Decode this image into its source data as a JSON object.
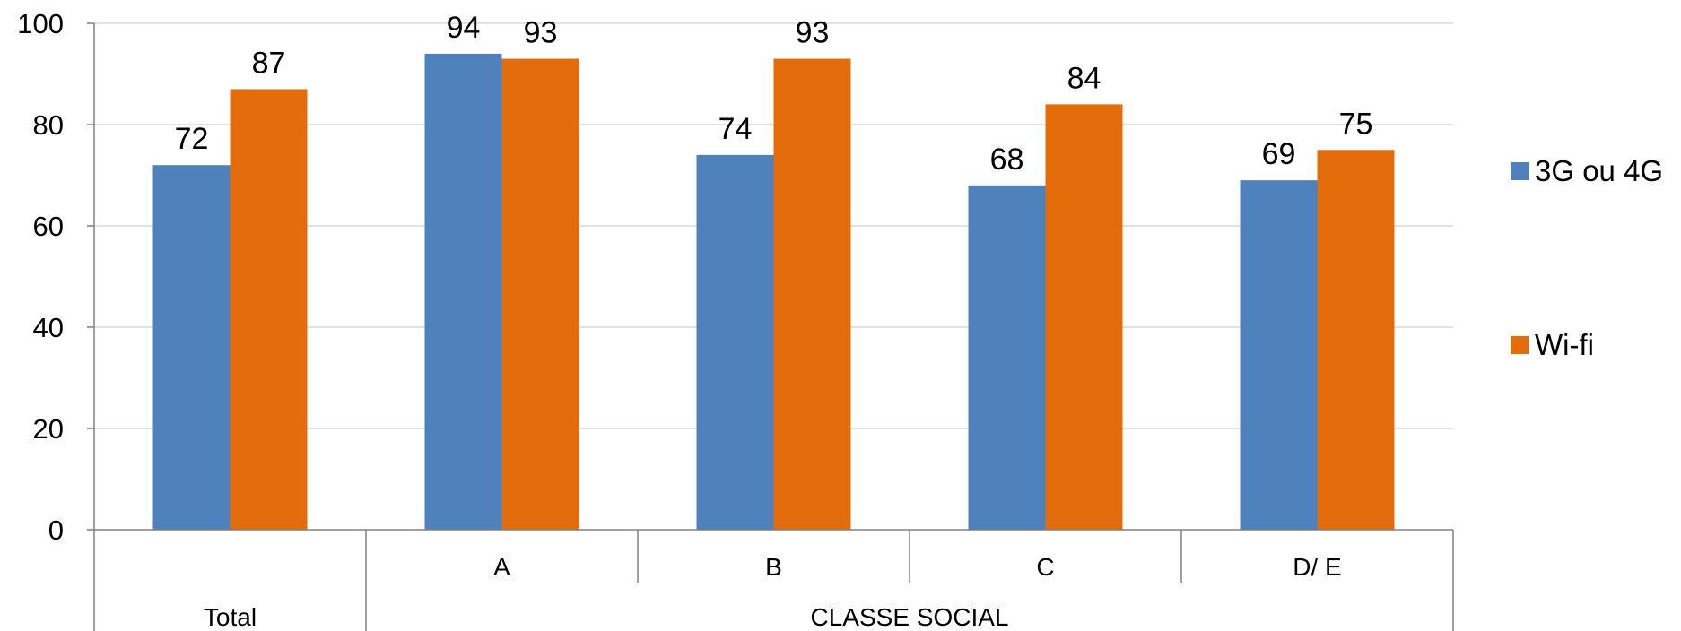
{
  "chart_data": {
    "type": "bar",
    "categories": [
      "Total",
      "A",
      "B",
      "C",
      "D/ E"
    ],
    "group_labels": [
      {
        "label": "Total",
        "categories": [
          "Total"
        ]
      },
      {
        "label": "CLASSE SOCIAL",
        "categories": [
          "A",
          "B",
          "C",
          "D/ E"
        ]
      }
    ],
    "category_display": [
      "",
      "A",
      "B",
      "C",
      "D/ E"
    ],
    "series": [
      {
        "name": "3G ou 4G",
        "color": "#4F81BD",
        "values": [
          72,
          94,
          74,
          68,
          69
        ]
      },
      {
        "name": "Wi-fi",
        "color": "#E46C0A",
        "values": [
          87,
          93,
          93,
          84,
          75
        ]
      }
    ],
    "ylim": [
      0,
      100
    ],
    "yticks": [
      0,
      20,
      40,
      60,
      80,
      100
    ],
    "grid": true,
    "legend": "right",
    "title": "",
    "xlabel": "",
    "ylabel": ""
  }
}
